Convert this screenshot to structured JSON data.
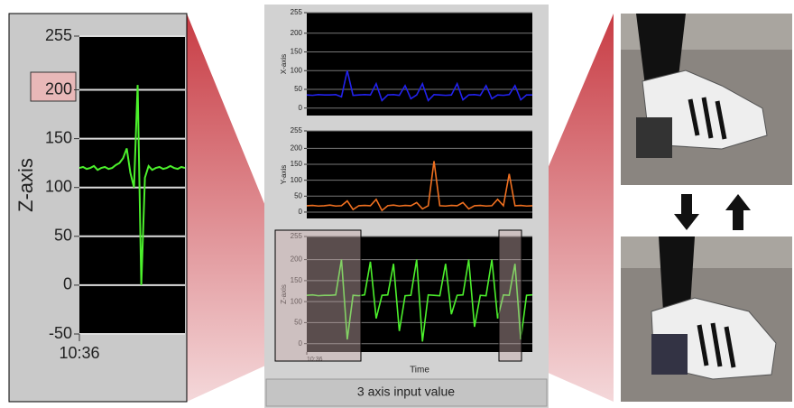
{
  "chart_data": [
    {
      "type": "line",
      "y_label": "Z-axis",
      "xlim": [
        0,
        29
      ],
      "ylim": [
        -50,
        255
      ],
      "yticks": [
        -50,
        0,
        50,
        100,
        150,
        200,
        255
      ],
      "xticks": [
        {
          "value": 0,
          "label": "10:36"
        }
      ],
      "grid": true,
      "x": [
        0,
        1,
        2,
        3,
        4,
        5,
        6,
        7,
        8,
        9,
        10,
        11,
        12,
        13,
        14,
        15,
        16,
        17,
        18,
        19,
        20,
        21,
        22,
        23,
        24,
        25,
        26,
        27,
        28,
        29
      ],
      "series": [
        {
          "color": "#4cf02c",
          "values": [
            120,
            121,
            119,
            120,
            122,
            118,
            120,
            121,
            119,
            120,
            123,
            125,
            130,
            140,
            115,
            100,
            205,
            0,
            110,
            122,
            118,
            120,
            121,
            119,
            120,
            122,
            120,
            119,
            121,
            120
          ]
        }
      ]
    },
    {
      "type": "line",
      "y_label": "X-axis",
      "xlim": [
        0,
        39
      ],
      "ylim": [
        -20,
        255
      ],
      "yticks": [
        0,
        50,
        100,
        150,
        200,
        255
      ],
      "grid": true,
      "x": [
        0,
        1,
        2,
        3,
        4,
        5,
        6,
        7,
        8,
        9,
        10,
        11,
        12,
        13,
        14,
        15,
        16,
        17,
        18,
        19,
        20,
        21,
        22,
        23,
        24,
        25,
        26,
        27,
        28,
        29,
        30,
        31,
        32,
        33,
        34,
        35,
        36,
        37,
        38,
        39
      ],
      "series": [
        {
          "color": "#2222ee",
          "values": [
            35,
            34,
            36,
            35,
            35,
            36,
            30,
            100,
            34,
            35,
            36,
            35,
            65,
            20,
            35,
            36,
            34,
            60,
            25,
            35,
            65,
            20,
            36,
            35,
            34,
            35,
            65,
            22,
            35,
            36,
            34,
            60,
            25,
            35,
            34,
            36,
            60,
            22,
            35,
            35
          ]
        }
      ]
    },
    {
      "type": "line",
      "y_label": "Y-axis",
      "xlim": [
        0,
        39
      ],
      "ylim": [
        -20,
        255
      ],
      "yticks": [
        0,
        50,
        100,
        150,
        200,
        255
      ],
      "grid": true,
      "x": [
        0,
        1,
        2,
        3,
        4,
        5,
        6,
        7,
        8,
        9,
        10,
        11,
        12,
        13,
        14,
        15,
        16,
        17,
        18,
        19,
        20,
        21,
        22,
        23,
        24,
        25,
        26,
        27,
        28,
        29,
        30,
        31,
        32,
        33,
        34,
        35,
        36,
        37,
        38,
        39
      ],
      "series": [
        {
          "color": "#f07020",
          "values": [
            20,
            21,
            19,
            20,
            22,
            19,
            20,
            35,
            8,
            20,
            21,
            20,
            40,
            5,
            20,
            22,
            19,
            21,
            20,
            30,
            10,
            20,
            160,
            20,
            19,
            21,
            20,
            30,
            10,
            20,
            21,
            19,
            20,
            40,
            20,
            120,
            20,
            21,
            19,
            20
          ]
        }
      ]
    },
    {
      "type": "line",
      "y_label": "Z-axis",
      "x_label": "Time",
      "xlim": [
        0,
        39
      ],
      "ylim": [
        -20,
        255
      ],
      "yticks": [
        0,
        50,
        100,
        150,
        200,
        255
      ],
      "xticks": [
        {
          "value": 0,
          "label": "10:36"
        }
      ],
      "grid": true,
      "x": [
        0,
        1,
        2,
        3,
        4,
        5,
        6,
        7,
        8,
        9,
        10,
        11,
        12,
        13,
        14,
        15,
        16,
        17,
        18,
        19,
        20,
        21,
        22,
        23,
        24,
        25,
        26,
        27,
        28,
        29,
        30,
        31,
        32,
        33,
        34,
        35,
        36,
        37,
        38,
        39
      ],
      "series": [
        {
          "color": "#4cf02c",
          "values": [
            115,
            116,
            114,
            115,
            115,
            116,
            200,
            10,
            115,
            114,
            116,
            195,
            60,
            115,
            116,
            190,
            30,
            114,
            115,
            200,
            5,
            116,
            115,
            114,
            190,
            70,
            115,
            116,
            200,
            40,
            115,
            114,
            200,
            60,
            116,
            115,
            190,
            10,
            115,
            116
          ]
        }
      ]
    }
  ],
  "caption": "3 axis input value"
}
